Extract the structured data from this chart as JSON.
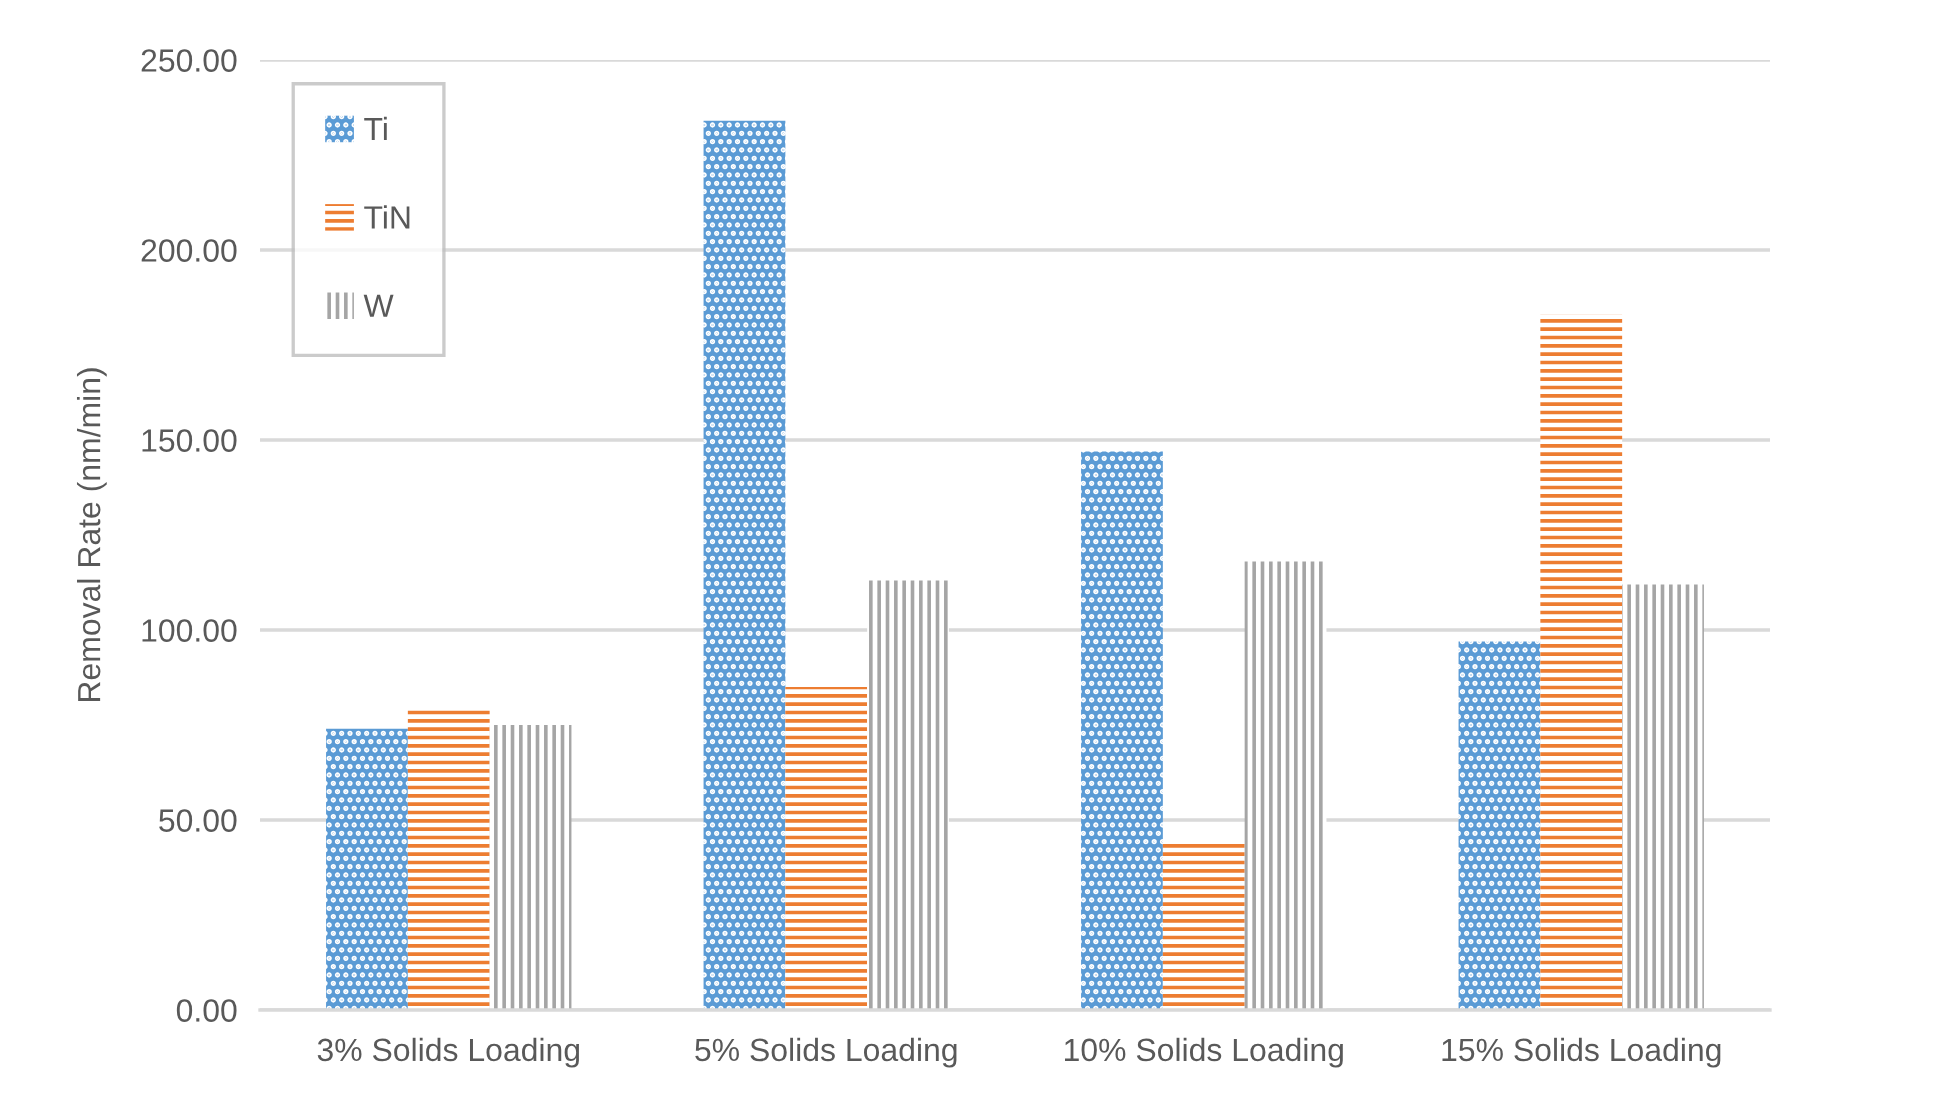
{
  "chart_data": {
    "type": "bar",
    "categories": [
      "3% Solids Loading",
      "5% Solids Loading",
      "10% Solids Loading",
      "15% Solids Loading"
    ],
    "series": [
      {
        "name": "Ti",
        "color": "#5b9bd5",
        "values": [
          74,
          234,
          147,
          97
        ]
      },
      {
        "name": "TiN",
        "color": "#ed7d31",
        "values": [
          79,
          85,
          44,
          183
        ]
      },
      {
        "name": "W",
        "color": "#a5a5a5",
        "values": [
          75,
          113,
          118,
          112
        ]
      }
    ],
    "ylabel": "Removal Rate (nm/min)",
    "ylim": [
      0,
      250
    ],
    "yticks": [
      {
        "value": 0,
        "label": "0.00"
      },
      {
        "value": 50,
        "label": "50.00"
      },
      {
        "value": 100,
        "label": "100.00"
      },
      {
        "value": 150,
        "label": "150.00"
      },
      {
        "value": 200,
        "label": "200.00"
      },
      {
        "value": 250,
        "label": "250.00"
      }
    ],
    "grid": "y",
    "legend": "top left"
  }
}
